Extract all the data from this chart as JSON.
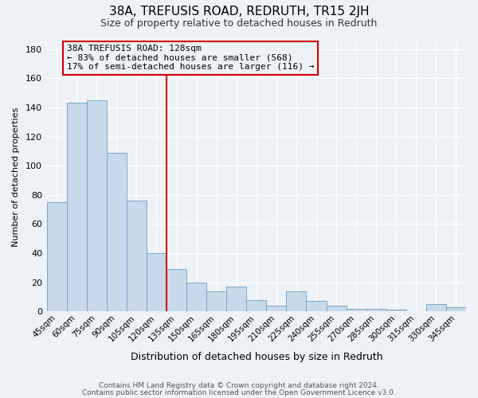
{
  "title": "38A, TREFUSIS ROAD, REDRUTH, TR15 2JH",
  "subtitle": "Size of property relative to detached houses in Redruth",
  "xlabel": "Distribution of detached houses by size in Redruth",
  "ylabel": "Number of detached properties",
  "bar_labels": [
    "45sqm",
    "60sqm",
    "75sqm",
    "90sqm",
    "105sqm",
    "120sqm",
    "135sqm",
    "150sqm",
    "165sqm",
    "180sqm",
    "195sqm",
    "210sqm",
    "225sqm",
    "240sqm",
    "255sqm",
    "270sqm",
    "285sqm",
    "300sqm",
    "315sqm",
    "330sqm",
    "345sqm"
  ],
  "bar_values": [
    75,
    143,
    145,
    109,
    76,
    40,
    29,
    20,
    14,
    17,
    8,
    4,
    14,
    7,
    4,
    2,
    2,
    1,
    0,
    5,
    3
  ],
  "bar_color": "#c8d9ea",
  "bar_edge_color": "#7aa8c8",
  "vline_color": "#cc0000",
  "annotation_title": "38A TREFUSIS ROAD: 128sqm",
  "annotation_line1": "← 83% of detached houses are smaller (568)",
  "annotation_line2": "17% of semi-detached houses are larger (116) →",
  "annotation_box_edge_color": "#cc0000",
  "ylim": [
    0,
    185
  ],
  "yticks": [
    0,
    20,
    40,
    60,
    80,
    100,
    120,
    140,
    160,
    180
  ],
  "footer_line1": "Contains HM Land Registry data © Crown copyright and database right 2024.",
  "footer_line2": "Contains public sector information licensed under the Open Government Licence v3.0.",
  "bg_color": "#eef2f7",
  "grid_color": "#ffffff"
}
